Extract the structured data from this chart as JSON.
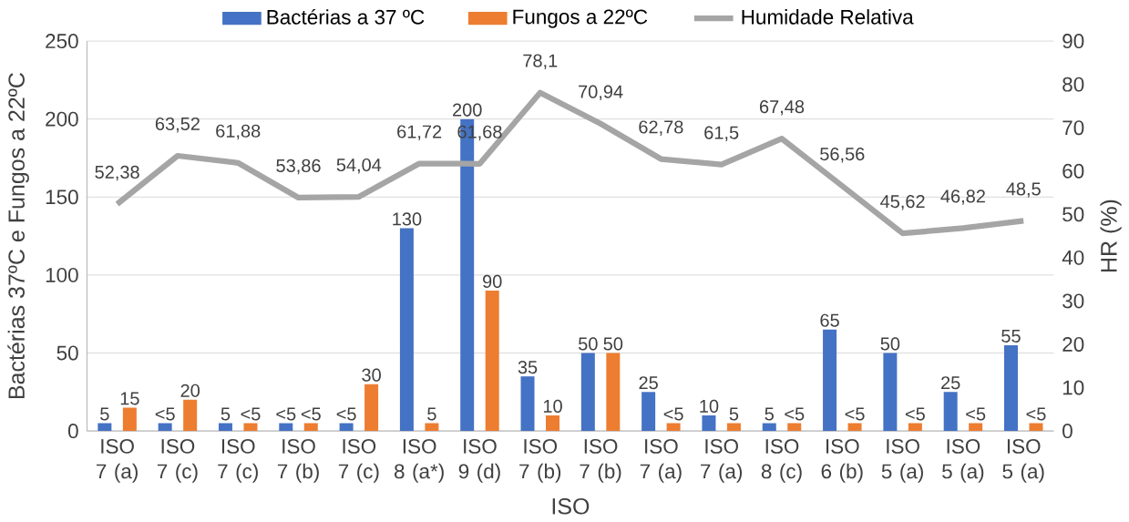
{
  "chart_data": {
    "type": "bar",
    "categories": [
      "ISO 7 (a)",
      "ISO 7 (c)",
      "ISO 7 (c)",
      "ISO 7 (b)",
      "ISO 7 (c)",
      "ISO 8 (a*)",
      "ISO 9 (d)",
      "ISO 7 (b)",
      "ISO 7 (b)",
      "ISO 7 (a)",
      "ISO 7 (a)",
      "ISO 8 (c)",
      "ISO 6 (b)",
      "ISO 5 (a)",
      "ISO 5 (a)",
      "ISO 5 (a)"
    ],
    "series": [
      {
        "name": "Bactérias a 37 ºC",
        "color": "#4472c4",
        "values": [
          5,
          5,
          5,
          5,
          5,
          130,
          200,
          35,
          50,
          25,
          10,
          5,
          65,
          50,
          25,
          55
        ],
        "value_labels": [
          "5",
          "<5",
          "5",
          "<5",
          "<5",
          "130",
          "200",
          "35",
          "50",
          "25",
          "10",
          "5",
          "65",
          "50",
          "25",
          "55"
        ]
      },
      {
        "name": "Fungos a 22ºC",
        "color": "#ed7d31",
        "values": [
          15,
          20,
          5,
          5,
          30,
          5,
          90,
          10,
          50,
          5,
          5,
          5,
          5,
          5,
          5,
          5
        ],
        "value_labels": [
          "15",
          "20",
          "<5",
          "<5",
          "30",
          "5",
          "90",
          "10",
          "50",
          "<5",
          "5",
          "<5",
          "<5",
          "<5",
          "<5",
          "<5"
        ]
      },
      {
        "name": "Humidade Relativa",
        "type": "line",
        "axis": "y2",
        "color": "#a5a5a5",
        "values": [
          52.38,
          63.52,
          61.88,
          53.86,
          54.04,
          61.72,
          61.68,
          78.1,
          70.94,
          62.78,
          61.5,
          67.48,
          56.56,
          45.62,
          46.82,
          48.5
        ],
        "value_labels": [
          "52,38",
          "63,52",
          "61,88",
          "53,86",
          "54,04",
          "61,72",
          "61,68",
          "78,1",
          "70,94",
          "62,78",
          "61,5",
          "67,48",
          "56,56",
          "45,62",
          "46,82",
          "48,5"
        ]
      }
    ],
    "xlabel": "ISO",
    "ylabel": "Bactérias 37ºC e Fungos a 22ºC",
    "y2label": "HR (%)",
    "ylim": [
      0,
      250
    ],
    "yticks": [
      0,
      50,
      100,
      150,
      200,
      250
    ],
    "y2lim": [
      0,
      90
    ],
    "y2ticks": [
      0,
      10,
      20,
      30,
      40,
      50,
      60,
      70,
      80,
      90
    ],
    "grid": "y",
    "legend": "top"
  }
}
